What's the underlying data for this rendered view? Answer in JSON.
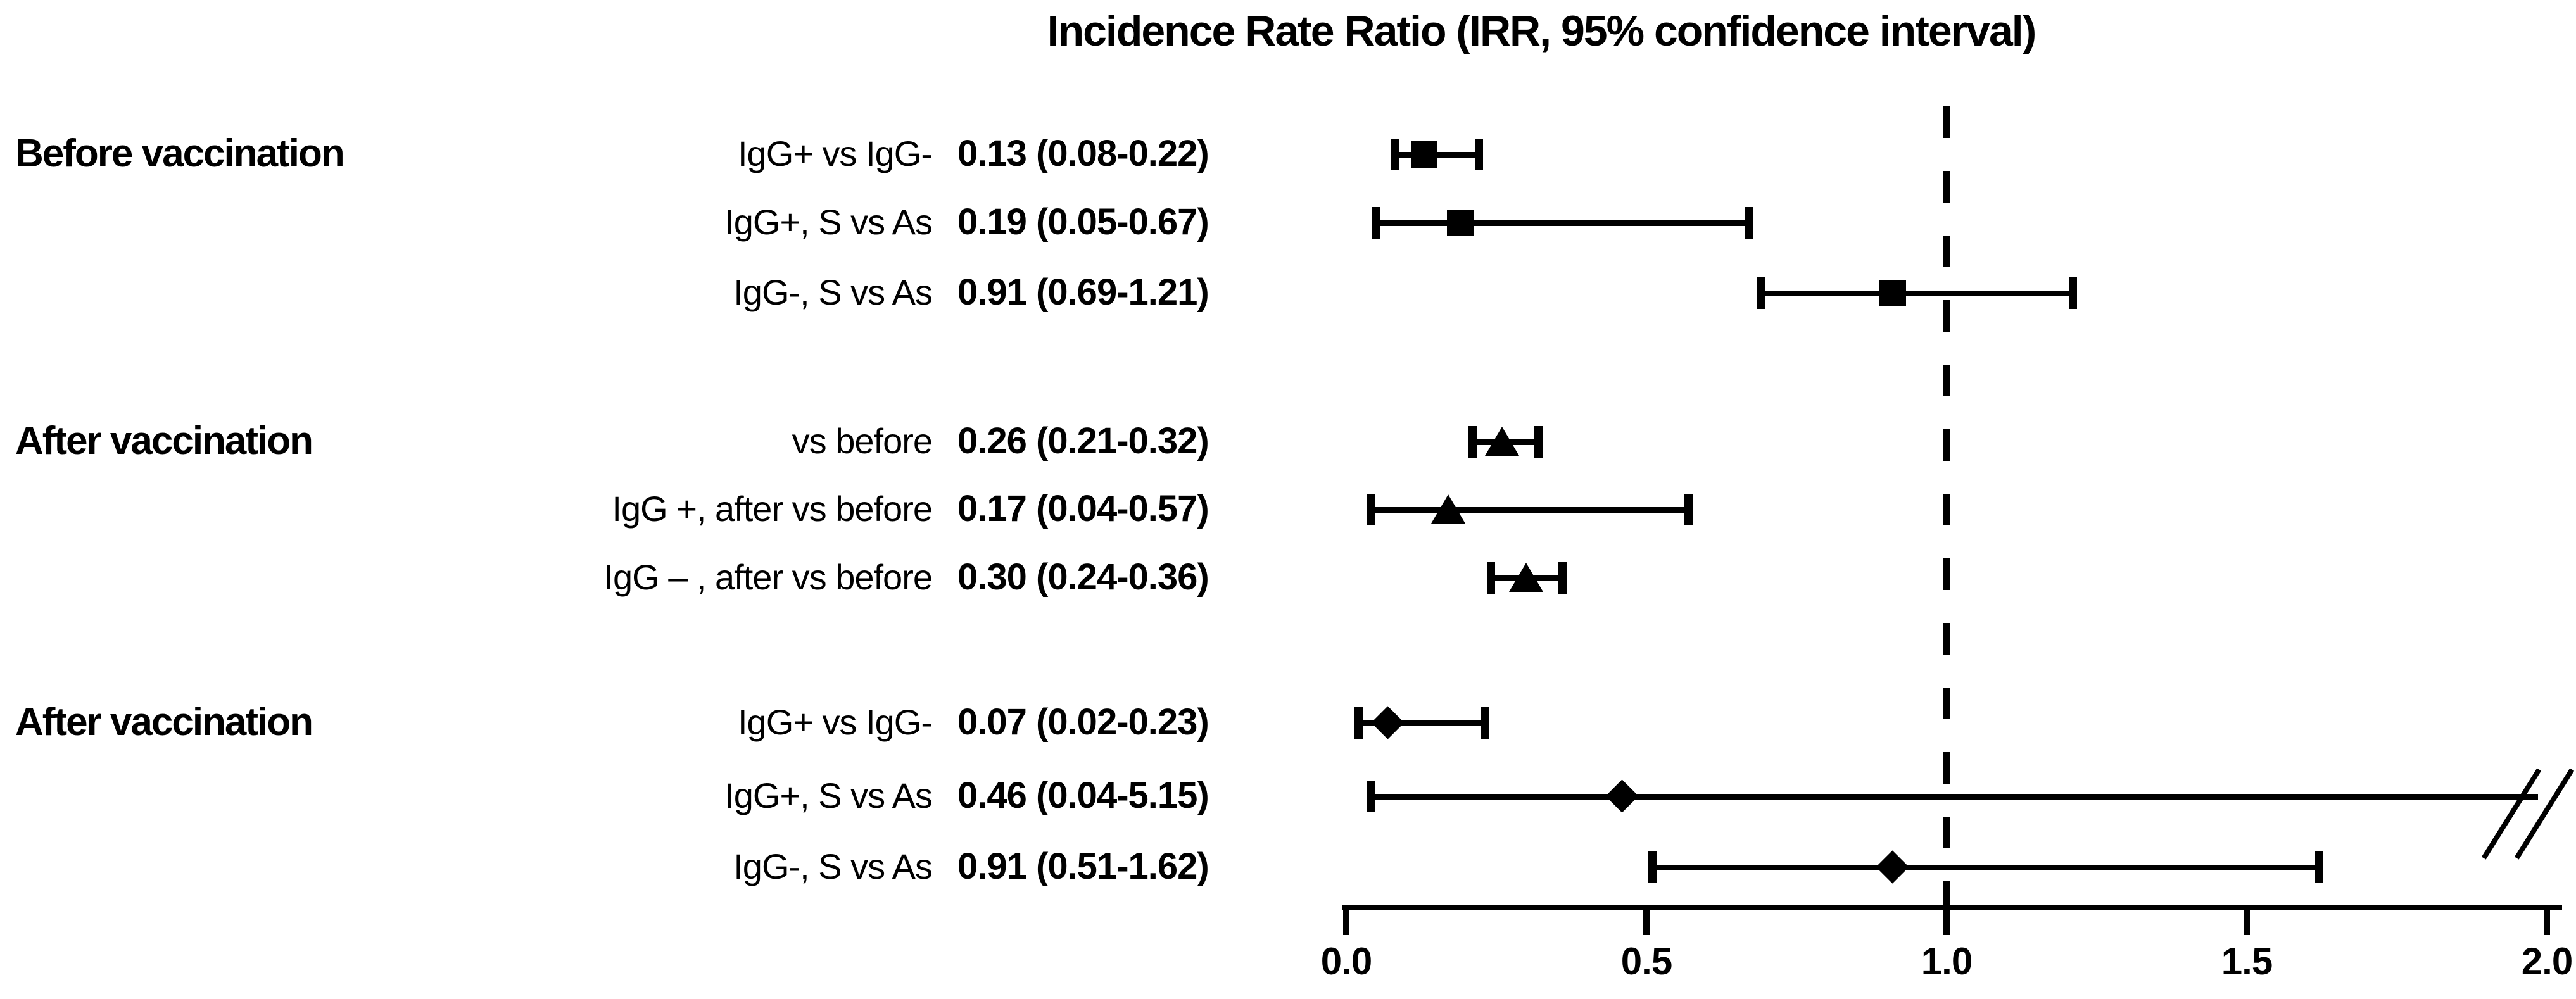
{
  "chart_data": {
    "type": "forest",
    "title": "Incidence Rate Ratio (IRR, 95% confidence interval)",
    "xlabel": "",
    "ylabel": "",
    "x_axis": {
      "min": 0.0,
      "max": 2.0,
      "tick_values": [
        0.0,
        0.5,
        1.0,
        1.5,
        2.0
      ],
      "tick_labels": [
        "0.0",
        "0.5",
        "1.0",
        "1.5",
        "2.0"
      ],
      "reference_line": 1.0,
      "reference_line_style": "dashed",
      "grid": false
    },
    "groups": [
      {
        "label": "Before vaccination",
        "marker": "square",
        "rows": [
          {
            "label": "IgG+ vs IgG-",
            "value_text": "0.13 (0.08-0.22)",
            "est": 0.13,
            "lo": 0.08,
            "hi": 0.22
          },
          {
            "label": "IgG+, S vs As",
            "value_text": "0.19 (0.05-0.67)",
            "est": 0.19,
            "lo": 0.05,
            "hi": 0.67
          },
          {
            "label": "IgG-, S vs As",
            "value_text": "0.91 (0.69-1.21)",
            "est": 0.91,
            "lo": 0.69,
            "hi": 1.21
          }
        ]
      },
      {
        "label": "After vaccination",
        "marker": "triangle",
        "rows": [
          {
            "label": "vs before",
            "value_text": "0.26 (0.21-0.32)",
            "est": 0.26,
            "lo": 0.21,
            "hi": 0.32
          },
          {
            "label": "IgG +,  after vs before",
            "value_text": "0.17 (0.04-0.57)",
            "est": 0.17,
            "lo": 0.04,
            "hi": 0.57
          },
          {
            "label": "IgG – , after vs before",
            "value_text": "0.30 (0.24-0.36)",
            "est": 0.3,
            "lo": 0.24,
            "hi": 0.36
          }
        ]
      },
      {
        "label": "After vaccination",
        "marker": "diamond",
        "rows": [
          {
            "label": "IgG+ vs IgG-",
            "value_text": "0.07 (0.02-0.23)",
            "est": 0.07,
            "lo": 0.02,
            "hi": 0.23
          },
          {
            "label": "IgG+, S vs As",
            "value_text": "0.46 (0.04-5.15)",
            "est": 0.46,
            "lo": 0.04,
            "hi": 5.15,
            "clipped_high": true
          },
          {
            "label": "IgG-, S vs As",
            "value_text": "0.91 (0.51-1.62)",
            "est": 0.91,
            "lo": 0.51,
            "hi": 1.62
          }
        ]
      }
    ],
    "colors": {
      "foreground": "#000000",
      "background": "#ffffff"
    }
  }
}
